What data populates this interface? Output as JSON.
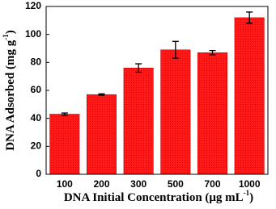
{
  "chart_data": {
    "type": "bar",
    "categories": [
      "100",
      "200",
      "300",
      "500",
      "700",
      "1000"
    ],
    "values": [
      43,
      57,
      76,
      89,
      87,
      112
    ],
    "errors": [
      0.8,
      0.5,
      3,
      6,
      1.5,
      4
    ],
    "color": "#ff1a1a",
    "ylim": [
      0,
      120
    ],
    "yticks": [
      0,
      20,
      40,
      60,
      80,
      100,
      120
    ],
    "x_label": {
      "text": "DNA Initial Concentration (μg mL",
      "sup": "-1",
      "end": ")"
    },
    "y_label": {
      "text": "DNA Adsorbed (mg g",
      "sup": "-1",
      "end": ")"
    }
  }
}
